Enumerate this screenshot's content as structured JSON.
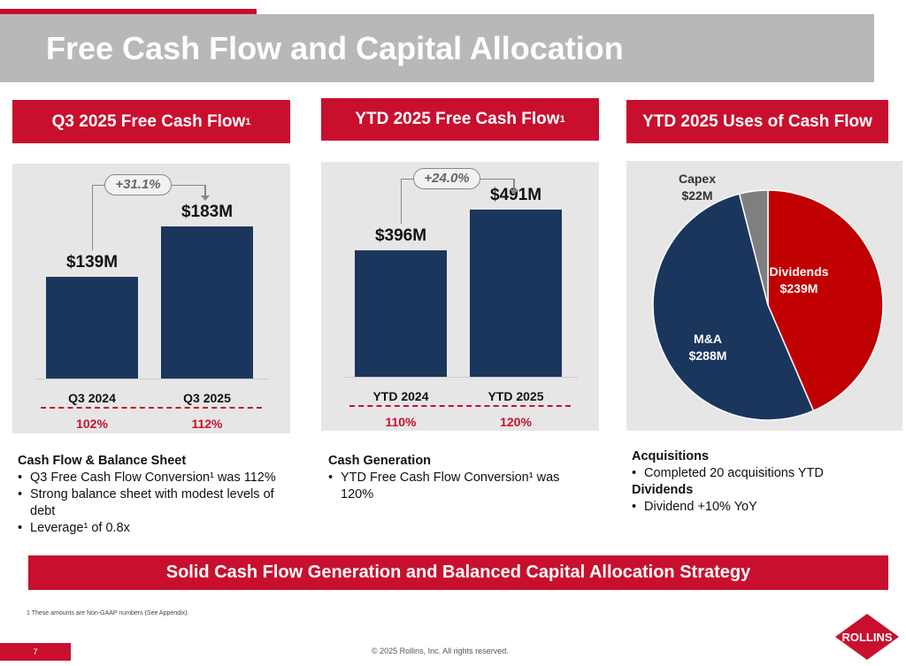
{
  "title": "Free Cash Flow and Capital Allocation",
  "sections": [
    {
      "label": "Q3 2025 Free Cash Flow",
      "sup": "1"
    },
    {
      "label": "YTD 2025 Free Cash Flow",
      "sup": "1"
    },
    {
      "label": "YTD 2025 Uses of Cash Flow"
    }
  ],
  "chart_data": [
    {
      "type": "bar",
      "categories": [
        "Q3 2024",
        "Q3 2025"
      ],
      "values": [
        139,
        183
      ],
      "value_labels": [
        "$139M",
        "$183M"
      ],
      "unit": "$M",
      "growth_label": "+31.1%",
      "conversion_labels": [
        "102%",
        "112%"
      ],
      "color": "#1b365d"
    },
    {
      "type": "bar",
      "categories": [
        "YTD 2024",
        "YTD 2025"
      ],
      "values": [
        396,
        491
      ],
      "value_labels": [
        "$396M",
        "$491M"
      ],
      "unit": "$M",
      "growth_label": "+24.0%",
      "conversion_labels": [
        "110%",
        "120%"
      ],
      "color": "#1b365d"
    },
    {
      "type": "pie",
      "slices": [
        {
          "label": "Dividends",
          "value": 239,
          "value_label": "$239M",
          "color": "#c00000"
        },
        {
          "label": "M&A",
          "value": 288,
          "value_label": "$288M",
          "color": "#1b365d"
        },
        {
          "label": "Capex",
          "value": 22,
          "value_label": "$22M",
          "color": "#7f7f7f"
        }
      ]
    }
  ],
  "notes": [
    {
      "heading": "Cash Flow & Balance Sheet",
      "items": [
        "Q3 Free Cash Flow Conversion¹ was 112%",
        "Strong balance sheet with modest levels of debt",
        "Leverage¹  of 0.8x"
      ]
    },
    {
      "heading": "Cash Generation",
      "items": [
        "YTD Free Cash Flow Conversion¹ was 120%"
      ]
    },
    {
      "heading1": "Acquisitions",
      "items1": [
        "Completed 20 acquisitions YTD"
      ],
      "heading2": "Dividends",
      "items2": [
        "Dividend +10% YoY"
      ]
    }
  ],
  "banner": "Solid Cash Flow Generation and Balanced Capital Allocation Strategy",
  "footnote": "1 These amounts are Non-GAAP numbers (See Appendix).",
  "page_number": "7",
  "copyright": "© 2025 Rollins, Inc. All rights reserved.",
  "logo": "ROLLINS",
  "colors": {
    "brand_red": "#c8102e",
    "navy": "#1b365d",
    "gray": "#b8b8b8"
  }
}
